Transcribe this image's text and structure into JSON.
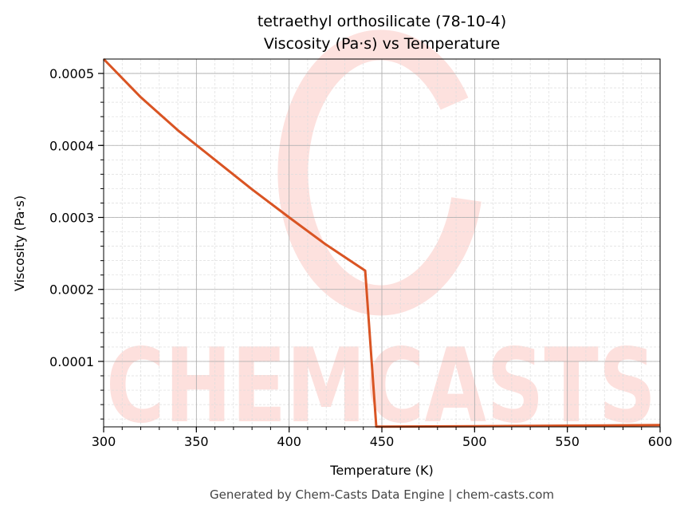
{
  "chart_data": {
    "type": "line",
    "title": "tetraethyl orthosilicate (78-10-4)",
    "subtitle": "Viscosity (Pa·s) vs Temperature",
    "xlabel": "Temperature (K)",
    "ylabel": "Viscosity (Pa·s)",
    "xlim": [
      300,
      600
    ],
    "ylim": [
      9.1e-06,
      0.00052
    ],
    "xticks": [
      300,
      350,
      400,
      450,
      500,
      550,
      600
    ],
    "xtick_labels": [
      "300",
      "350",
      "400",
      "450",
      "500",
      "550",
      "600"
    ],
    "yticks": [
      0.0001,
      0.0002,
      0.0003,
      0.0004,
      0.0005
    ],
    "ytick_labels": [
      "0.0001",
      "0.0002",
      "0.0003",
      "0.0004",
      "0.0005"
    ],
    "grid": true,
    "line_color": "#d95423",
    "series": [
      {
        "x": [
          300,
          320,
          340,
          360,
          380,
          400,
          420,
          441,
          447,
          450,
          500,
          550,
          600
        ],
        "values": [
          0.00052,
          0.000467,
          0.000421,
          0.00038,
          0.000339,
          0.0003,
          0.000262,
          0.000226,
          9.3e-06,
          9.3e-06,
          1e-05,
          1.08e-05,
          1.15e-05
        ]
      }
    ],
    "watermark": "CHEMCASTS"
  },
  "footer": "Generated by Chem-Casts Data Engine | chem-casts.com"
}
